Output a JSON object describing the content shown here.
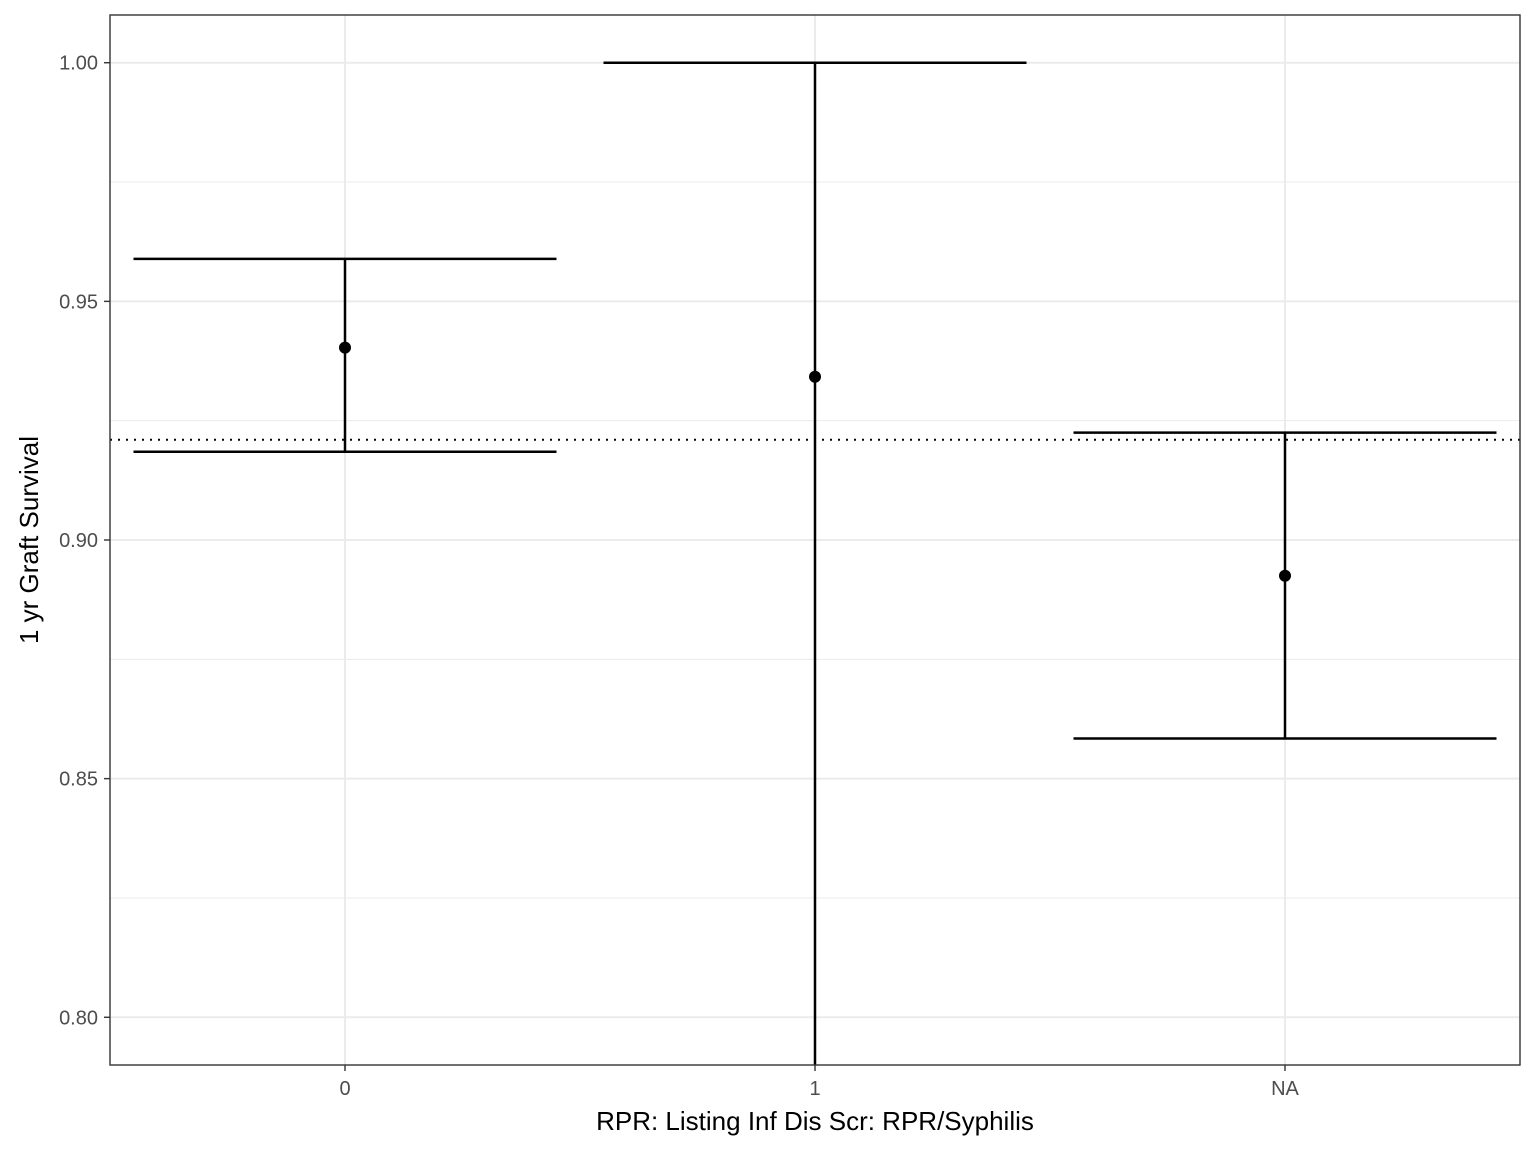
{
  "chart_data": {
    "type": "errorbar",
    "xlabel": "RPR: Listing Inf Dis Scr: RPR/Syphilis",
    "ylabel": "1 yr Graft Survival",
    "categories": [
      "0",
      "1",
      "NA"
    ],
    "y_ticks": [
      "0.80",
      "0.85",
      "0.90",
      "0.95",
      "1.00"
    ],
    "ylim": [
      0.79,
      1.01
    ],
    "points": [
      {
        "category": "0",
        "estimate": 0.9403,
        "lower": 0.9185,
        "upper": 0.9589
      },
      {
        "category": "1",
        "estimate": 0.9342,
        "lower": 0.79,
        "upper": 1.0
      },
      {
        "category": "NA",
        "estimate": 0.8925,
        "lower": 0.8584,
        "upper": 0.9225
      }
    ],
    "reference_line": {
      "y": 0.921,
      "style": "dotted"
    },
    "grid": true,
    "theme": "bw"
  }
}
